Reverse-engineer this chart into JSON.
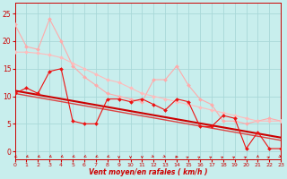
{
  "bg_color": "#c8eeed",
  "grid_color": "#a8d8d8",
  "x_label": "Vent moyen/en rafales ( km/h )",
  "x_ticks": [
    0,
    1,
    2,
    3,
    4,
    5,
    6,
    7,
    8,
    9,
    10,
    11,
    12,
    13,
    14,
    15,
    16,
    17,
    18,
    19,
    20,
    21,
    22,
    23
  ],
  "y_ticks": [
    0,
    5,
    10,
    15,
    20,
    25
  ],
  "xlim": [
    0,
    23
  ],
  "ylim": [
    -1.5,
    27
  ],
  "series": [
    {
      "x": [
        0,
        1,
        2,
        3,
        4,
        5,
        6,
        7,
        8,
        9,
        10,
        11,
        12,
        13,
        14,
        15,
        16,
        17,
        18,
        19,
        20,
        21,
        22,
        23
      ],
      "y": [
        23.0,
        19.0,
        18.5,
        24.0,
        20.0,
        15.5,
        13.5,
        12.0,
        10.5,
        10.0,
        9.5,
        9.0,
        13.0,
        13.0,
        15.5,
        12.0,
        9.5,
        8.5,
        5.5,
        5.5,
        5.0,
        5.5,
        6.0,
        5.5
      ],
      "color": "#ffaaaa",
      "lw": 0.8,
      "marker": "D",
      "ms": 2.0,
      "zorder": 3
    },
    {
      "x": [
        0,
        1,
        2,
        3,
        4,
        5,
        6,
        7,
        8,
        9,
        10,
        11,
        12,
        13,
        14,
        15,
        16,
        17,
        18,
        19,
        20,
        21,
        22,
        23
      ],
      "y": [
        18.0,
        18.0,
        17.8,
        17.5,
        17.0,
        16.0,
        15.0,
        14.0,
        13.0,
        12.5,
        11.5,
        10.5,
        10.0,
        9.5,
        9.0,
        8.5,
        8.0,
        7.5,
        7.0,
        6.5,
        6.0,
        5.5,
        5.5,
        5.5
      ],
      "color": "#ffbbbb",
      "lw": 0.8,
      "marker": "D",
      "ms": 2.0,
      "zorder": 3
    },
    {
      "x": [
        0,
        1,
        2,
        3,
        4,
        5,
        6,
        7,
        8,
        9,
        10,
        11,
        12,
        13,
        14,
        15,
        16,
        17,
        18,
        19,
        20,
        21,
        22,
        23
      ],
      "y": [
        10.5,
        11.5,
        10.5,
        14.5,
        15.0,
        5.5,
        5.0,
        5.0,
        9.5,
        9.5,
        9.0,
        9.5,
        8.5,
        7.5,
        9.5,
        9.0,
        4.5,
        4.5,
        6.5,
        6.0,
        0.5,
        3.5,
        0.5,
        0.5
      ],
      "color": "#ee1111",
      "lw": 0.8,
      "marker": "D",
      "ms": 2.0,
      "zorder": 4
    },
    {
      "x": [
        0,
        23
      ],
      "y": [
        11.0,
        2.5
      ],
      "color": "#cc0000",
      "lw": 1.5,
      "marker": null,
      "ms": 0,
      "zorder": 2
    },
    {
      "x": [
        0,
        23
      ],
      "y": [
        10.5,
        2.0
      ],
      "color": "#dd4444",
      "lw": 1.0,
      "marker": null,
      "ms": 0,
      "zorder": 2
    }
  ],
  "wind_arrows": {
    "x": [
      0,
      1,
      2,
      3,
      4,
      5,
      6,
      7,
      8,
      9,
      10,
      11,
      12,
      13,
      14,
      15,
      16,
      17,
      18,
      19,
      20,
      21,
      22,
      23
    ],
    "angles": [
      225,
      225,
      225,
      225,
      225,
      225,
      225,
      225,
      225,
      270,
      270,
      270,
      315,
      315,
      0,
      45,
      45,
      45,
      45,
      45,
      45,
      90,
      45,
      315
    ]
  }
}
